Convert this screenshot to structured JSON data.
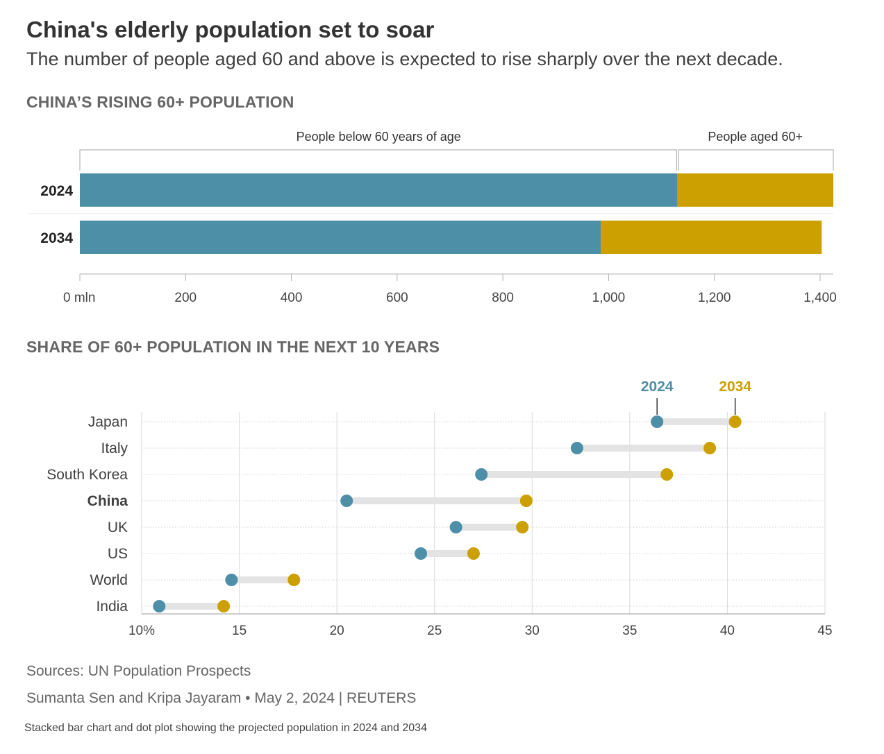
{
  "title": "China's elderly population set to soar",
  "subtitle": "The number of people aged 60 and above is expected to rise sharply over the next decade.",
  "footer": {
    "sources": "Sources: UN Population Prospects",
    "byline": "Sumanta Sen and Kripa Jayaram • May 2, 2024 | REUTERS",
    "caption": "Stacked bar chart and dot plot showing the projected population in 2024 and 2034"
  },
  "colors": {
    "below60": "#4e8fa8",
    "aged60": "#cca000",
    "connector": "#e3e3e3",
    "grid": "#cccccc"
  },
  "chart_data": [
    {
      "type": "bar",
      "stacked": true,
      "orientation": "horizontal",
      "title": "CHINA’S RISING 60+ POPULATION",
      "categories": [
        "2024",
        "2034"
      ],
      "series": [
        {
          "name": "People below 60 years of age",
          "values": [
            1130,
            985
          ]
        },
        {
          "name": "People aged 60+",
          "values": [
            295,
            418
          ]
        }
      ],
      "xlim": [
        0,
        1425
      ],
      "x_ticks": [
        0,
        200,
        400,
        600,
        800,
        1000,
        1200,
        1400
      ],
      "x_tick_labels": [
        "0 mln",
        "200",
        "400",
        "600",
        "800",
        "1,000",
        "1,200",
        "1,400"
      ],
      "legend": "brackets above bars"
    },
    {
      "type": "scatter",
      "subtype": "dumbbell",
      "title": "SHARE OF 60+ POPULATION IN THE NEXT 10 YEARS",
      "categories": [
        "Japan",
        "Italy",
        "South Korea",
        "China",
        "UK",
        "US",
        "World",
        "India"
      ],
      "highlight": "China",
      "series": [
        {
          "name": "2024",
          "values": [
            36.4,
            32.3,
            27.4,
            20.5,
            26.1,
            24.3,
            14.6,
            10.9
          ]
        },
        {
          "name": "2034",
          "values": [
            40.4,
            39.1,
            36.9,
            29.7,
            29.5,
            27.0,
            17.8,
            14.2
          ]
        }
      ],
      "xlim": [
        10,
        45
      ],
      "x_ticks": [
        10,
        15,
        20,
        25,
        30,
        35,
        40,
        45
      ],
      "x_tick_labels": [
        "10%",
        "15",
        "20",
        "25",
        "30",
        "35",
        "40",
        "45"
      ],
      "grid": true,
      "legend": "top-right, labels above Japan dots"
    }
  ]
}
